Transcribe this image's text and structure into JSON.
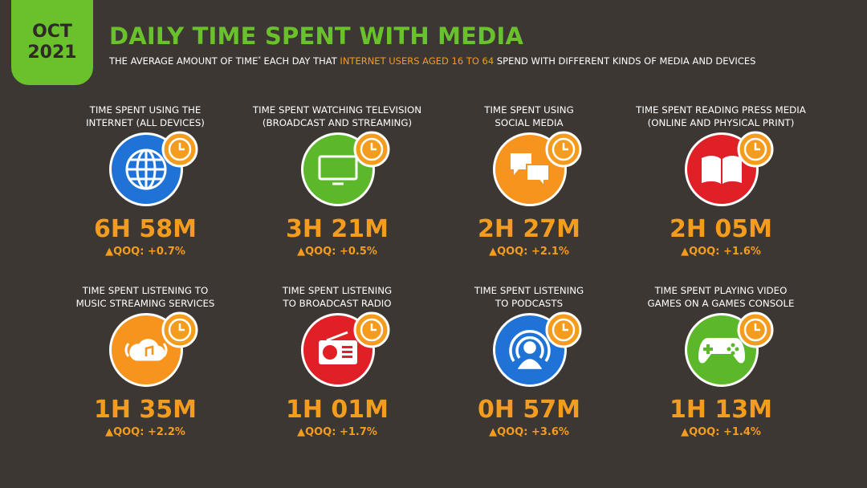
{
  "badge": {
    "month": "OCT",
    "year": "2021"
  },
  "title": "DAILY TIME SPENT WITH MEDIA",
  "subtitle": {
    "part1": "THE AVERAGE AMOUNT OF TIME",
    "asterisk": "*",
    "part2": " EACH DAY THAT ",
    "highlight": "INTERNET USERS AGED 16 TO 64",
    "part3": " SPEND WITH DIFFERENT KINDS OF MEDIA AND DEVICES"
  },
  "colors": {
    "background": "#3d3733",
    "brand_green": "#69c12b",
    "accent_orange": "#f39c1e",
    "internet_blue": "#1f73d6",
    "tv_green": "#5cb82a",
    "social_orange": "#f7941d",
    "press_red": "#e11f26",
    "music_orange": "#f7941d",
    "radio_red": "#e11f26",
    "podcast_blue": "#1f73d6",
    "games_green": "#5cb82a"
  },
  "cards": [
    {
      "label_line1": "TIME SPENT USING THE",
      "label_line2": "INTERNET (ALL DEVICES)",
      "icon": "globe-icon",
      "value": "6H 58M",
      "change": "▲QOQ: +0.7%"
    },
    {
      "label_line1": "TIME SPENT WATCHING TELEVISION",
      "label_line2": "(BROADCAST AND STREAMING)",
      "icon": "television-icon",
      "value": "3H 21M",
      "change": "▲QOQ: +0.5%"
    },
    {
      "label_line1": "TIME SPENT USING",
      "label_line2": "SOCIAL MEDIA",
      "icon": "chat-bubbles-icon",
      "value": "2H 27M",
      "change": "▲QOQ: +2.1%"
    },
    {
      "label_line1": "TIME SPENT READING PRESS MEDIA",
      "label_line2": "(ONLINE AND PHYSICAL PRINT)",
      "icon": "open-book-icon",
      "value": "2H 05M",
      "change": "▲QOQ: +1.6%"
    },
    {
      "label_line1": "TIME SPENT LISTENING TO",
      "label_line2": "MUSIC STREAMING SERVICES",
      "icon": "music-cloud-icon",
      "value": "1H 35M",
      "change": "▲QOQ: +2.2%"
    },
    {
      "label_line1": "TIME SPENT LISTENING",
      "label_line2": "TO BROADCAST RADIO",
      "icon": "radio-icon",
      "value": "1H 01M",
      "change": "▲QOQ: +1.7%"
    },
    {
      "label_line1": "TIME SPENT LISTENING",
      "label_line2": "TO PODCASTS",
      "icon": "podcast-icon",
      "value": "0H 57M",
      "change": "▲QOQ: +3.6%"
    },
    {
      "label_line1": "TIME SPENT PLAYING VIDEO",
      "label_line2": "GAMES ON A GAMES CONSOLE",
      "icon": "gamepad-icon",
      "value": "1H 13M",
      "change": "▲QOQ: +1.4%"
    }
  ]
}
